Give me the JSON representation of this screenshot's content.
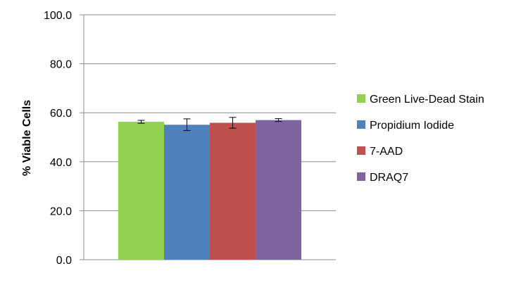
{
  "chart_data": {
    "type": "bar",
    "title": "",
    "xlabel": "",
    "ylabel": "% Viable Cells",
    "ylim": [
      0,
      100
    ],
    "yticks": [
      "0.0",
      "20.0",
      "40.0",
      "60.0",
      "80.0",
      "100.0"
    ],
    "grid": true,
    "legend_position": "right",
    "series": [
      {
        "name": "Green Live-Dead Stain",
        "value": 56.3,
        "error": 0.6,
        "color": "#92d050"
      },
      {
        "name": "Propidium Iodide",
        "value": 55.1,
        "error": 2.4,
        "color": "#4f81bd"
      },
      {
        "name": "7-AAD",
        "value": 55.9,
        "error": 2.2,
        "color": "#c0504d"
      },
      {
        "name": "DRAQ7",
        "value": 57.0,
        "error": 0.6,
        "color": "#8064a2"
      }
    ]
  }
}
